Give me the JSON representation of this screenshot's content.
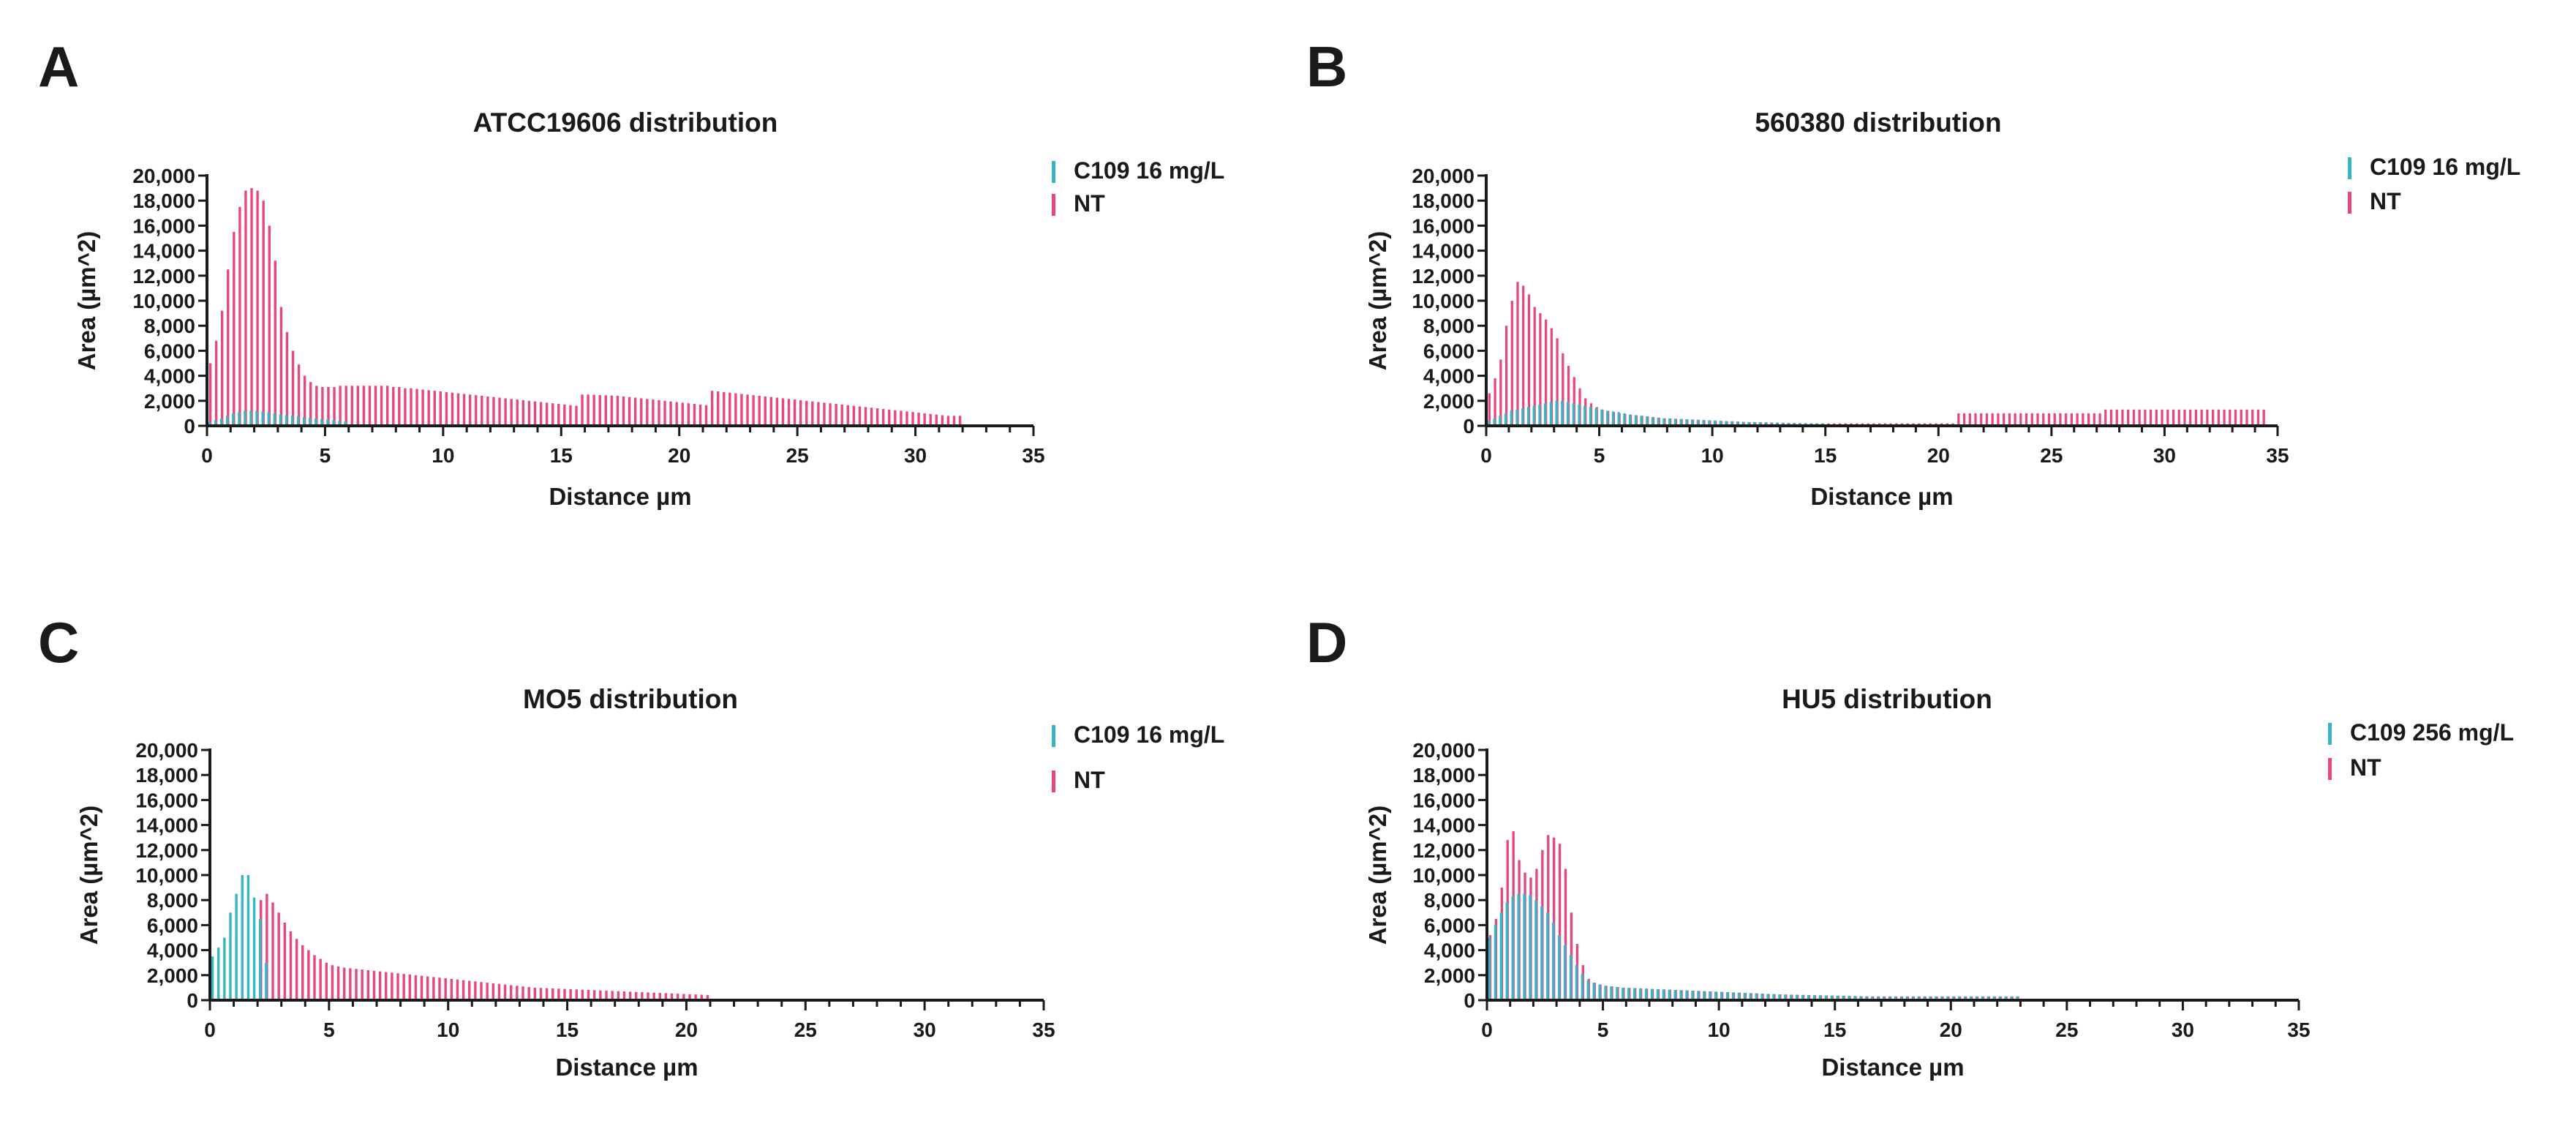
{
  "colors": {
    "treated": "#36b5c2",
    "nt": "#e7477e"
  },
  "chart_data": [
    {
      "panel": "A",
      "type": "bar",
      "title": "ATCC19606 distribution",
      "xlabel": "Distance µm",
      "ylabel": "Area (µm^2)",
      "xlim": [
        0,
        35
      ],
      "ylim": [
        0,
        20000
      ],
      "x_ticks": [
        "0",
        "5",
        "10",
        "15",
        "20",
        "25",
        "30",
        "35"
      ],
      "y_ticks": [
        "0",
        "2,000",
        "4,000",
        "6,000",
        "8,000",
        "10,000",
        "12,000",
        "14,000",
        "16,000",
        "18,000",
        "20,000"
      ],
      "bin_width": 0.25,
      "series": [
        {
          "name": "C109 16 mg/L",
          "color": "#36b5c2",
          "x_start": 0,
          "x_end": 6.0,
          "values": [
            300,
            450,
            600,
            800,
            1000,
            1100,
            1200,
            1200,
            1200,
            1150,
            1100,
            1000,
            900,
            850,
            800,
            750,
            700,
            650,
            600,
            550,
            500,
            450,
            400,
            350
          ]
        },
        {
          "name": "NT",
          "color": "#e7477e",
          "x_start": 0,
          "x_end": 30.5,
          "values": [
            5000,
            6800,
            9200,
            12500,
            15500,
            17500,
            18800,
            19000,
            18800,
            18000,
            16000,
            13200,
            9500,
            7500,
            6000,
            4900,
            4000,
            3500,
            3200,
            3100,
            3100,
            3100,
            3200,
            3200,
            3200,
            3200,
            3200,
            3200,
            3200,
            3200,
            3200,
            3100,
            3100,
            3000,
            3000,
            2950,
            2900,
            2850,
            2800,
            2750,
            2700,
            2650,
            2600,
            2550,
            2500,
            2450,
            2400,
            2350,
            2300,
            2250,
            2200,
            2150,
            2100,
            2050,
            2000,
            1950,
            1900,
            1850,
            1800,
            1750,
            1700,
            1650,
            1600,
            2500,
            2500,
            2480,
            2460,
            2440,
            2420,
            2400,
            2350,
            2300,
            2250,
            2200,
            2150,
            2100,
            2050,
            2000,
            1950,
            1900,
            1850,
            1800,
            1750,
            1700,
            1650,
            2800,
            2750,
            2700,
            2650,
            2600,
            2550,
            2500,
            2450,
            2400,
            2350,
            2300,
            2250,
            2200,
            2150,
            2100,
            2050,
            2000,
            1950,
            1900,
            1850,
            1800,
            1750,
            1700,
            1650,
            1600,
            1550,
            1500,
            1450,
            1400,
            1350,
            1300,
            1250,
            1200,
            1150,
            1100,
            1050,
            1000,
            950,
            900,
            850,
            800,
            800,
            800
          ]
        }
      ]
    },
    {
      "panel": "B",
      "type": "bar",
      "title": "560380 distribution",
      "xlabel": "Distance µm",
      "ylabel": "Area (µm^2)",
      "xlim": [
        0,
        35
      ],
      "ylim": [
        0,
        20000
      ],
      "x_ticks": [
        "0",
        "5",
        "10",
        "15",
        "20",
        "25",
        "30",
        "35"
      ],
      "y_ticks": [
        "0",
        "2,000",
        "4,000",
        "6,000",
        "8,000",
        "10,000",
        "12,000",
        "14,000",
        "16,000",
        "18,000",
        "20,000"
      ],
      "bin_width": 0.25,
      "series": [
        {
          "name": "C109 16 mg/L",
          "color": "#36b5c2",
          "x_start": 0,
          "x_end": 15.0,
          "values": [
            400,
            600,
            800,
            1000,
            1200,
            1300,
            1400,
            1500,
            1600,
            1700,
            1800,
            1900,
            2000,
            2000,
            1900,
            1800,
            1700,
            1600,
            1500,
            1400,
            1300,
            1200,
            1150,
            1100,
            1000,
            900,
            850,
            800,
            750,
            700,
            650,
            600,
            580,
            560,
            540,
            520,
            500,
            480,
            460,
            440,
            420,
            400,
            380,
            360,
            340,
            320,
            300,
            300,
            290,
            280,
            270,
            260,
            250,
            240,
            230,
            220,
            210,
            200,
            200,
            200
          ]
        },
        {
          "name": "NT",
          "color": "#e7477e",
          "x_start": 0,
          "x_end": 35.0,
          "values": [
            2600,
            3800,
            5300,
            8000,
            10000,
            11500,
            11200,
            10500,
            9500,
            9000,
            8500,
            7800,
            7000,
            5800,
            4800,
            3900,
            3000,
            2200,
            1800,
            1500,
            1300,
            1200,
            1100,
            1000,
            950,
            900,
            850,
            800,
            750,
            700,
            650,
            600,
            580,
            560,
            540,
            520,
            500,
            480,
            460,
            440,
            420,
            400,
            380,
            360,
            340,
            320,
            300,
            290,
            280,
            270,
            260,
            250,
            240,
            230,
            220,
            210,
            200,
            200,
            200,
            200,
            200,
            200,
            200,
            200,
            200,
            200,
            200,
            200,
            200,
            200,
            200,
            200,
            200,
            200,
            200,
            200,
            200,
            200,
            200,
            200,
            200,
            200,
            200,
            1000,
            1000,
            1000,
            1000,
            1000,
            1000,
            1000,
            1000,
            1000,
            1000,
            1000,
            1000,
            1000,
            1000,
            1000,
            1000,
            1000,
            1000,
            1000,
            1000,
            1000,
            1000,
            1000,
            1000,
            1000,
            1000,
            1300,
            1300,
            1300,
            1300,
            1300,
            1300,
            1300,
            1300,
            1300,
            1300,
            1300,
            1300,
            1300,
            1300,
            1300,
            1300,
            1300,
            1300,
            1300,
            1300,
            1300,
            1300,
            1300,
            1300,
            1300,
            1300,
            1300,
            1300,
            1300
          ]
        }
      ]
    },
    {
      "panel": "C",
      "type": "bar",
      "title": "MO5 distribution",
      "xlabel": "Distance µm",
      "ylabel": "Area (µm^2)",
      "xlim": [
        0,
        35
      ],
      "ylim": [
        0,
        20000
      ],
      "x_ticks": [
        "0",
        "5",
        "10",
        "15",
        "20",
        "25",
        "30",
        "35"
      ],
      "y_ticks": [
        "0",
        "2,000",
        "4,000",
        "6,000",
        "8,000",
        "10,000",
        "12,000",
        "14,000",
        "16,000",
        "18,000",
        "20,000"
      ],
      "bin_width": 0.25,
      "series": [
        {
          "name": "C109 16 mg/L",
          "color": "#36b5c2",
          "x_start": 0,
          "x_end": 2.5,
          "values": [
            3500,
            4200,
            5000,
            7000,
            8500,
            10000,
            10000,
            8200,
            6500,
            3000
          ]
        },
        {
          "name": "NT",
          "color": "#e7477e",
          "x_start": 0,
          "x_end": 21.0,
          "values": [
            0,
            0,
            0,
            0,
            0,
            0,
            0,
            0,
            8000,
            8500,
            7800,
            7000,
            6200,
            5500,
            4900,
            4400,
            4000,
            3600,
            3300,
            3000,
            2800,
            2700,
            2600,
            2550,
            2500,
            2450,
            2400,
            2350,
            2300,
            2250,
            2200,
            2150,
            2100,
            2050,
            2000,
            1950,
            1900,
            1850,
            1800,
            1750,
            1700,
            1650,
            1600,
            1550,
            1500,
            1450,
            1400,
            1350,
            1300,
            1250,
            1200,
            1150,
            1100,
            1050,
            1000,
            980,
            960,
            940,
            920,
            900,
            880,
            860,
            840,
            820,
            800,
            780,
            760,
            740,
            720,
            700,
            680,
            660,
            640,
            620,
            600,
            580,
            560,
            540,
            520,
            500,
            480,
            460,
            440,
            420
          ]
        }
      ]
    },
    {
      "panel": "D",
      "type": "bar",
      "title": "HU5 distribution",
      "xlabel": "Distance µm",
      "ylabel": "Area (µm^2)",
      "xlim": [
        0,
        35
      ],
      "ylim": [
        0,
        20000
      ],
      "x_ticks": [
        "0",
        "5",
        "10",
        "15",
        "20",
        "25",
        "30",
        "35"
      ],
      "y_ticks": [
        "0",
        "2,000",
        "4,000",
        "6,000",
        "8,000",
        "10,000",
        "12,000",
        "14,000",
        "16,000",
        "18,000",
        "20,000"
      ],
      "bin_width": 0.25,
      "series": [
        {
          "name": "C109 256 mg/L",
          "color": "#36b5c2",
          "x_start": 0,
          "x_end": 23.0,
          "values": [
            5000,
            6000,
            7000,
            7800,
            8300,
            8500,
            8500,
            8400,
            8000,
            7500,
            7000,
            6200,
            5200,
            4400,
            3600,
            2800,
            2100,
            1600,
            1400,
            1250,
            1150,
            1100,
            1050,
            1000,
            980,
            960,
            940,
            920,
            900,
            880,
            860,
            840,
            820,
            800,
            780,
            760,
            740,
            720,
            700,
            680,
            660,
            640,
            620,
            600,
            580,
            560,
            540,
            520,
            500,
            480,
            460,
            450,
            440,
            430,
            420,
            410,
            400,
            390,
            380,
            370,
            360,
            350,
            340,
            330,
            320,
            310,
            300,
            300,
            300,
            300,
            300,
            300,
            300,
            300,
            300,
            300,
            300,
            300,
            300,
            300,
            300,
            300,
            300,
            300,
            300,
            300,
            300,
            300,
            300,
            300,
            300,
            300
          ]
        },
        {
          "name": "NT",
          "color": "#e7477e",
          "x_start": 0,
          "x_end": 23.0,
          "values": [
            5200,
            6500,
            9000,
            12800,
            13500,
            11200,
            10200,
            9800,
            10500,
            12000,
            13200,
            13000,
            12500,
            10500,
            7000,
            4500,
            2800,
            1700,
            1400,
            1250,
            1150,
            1100,
            1050,
            1000,
            980,
            960,
            940,
            920,
            900,
            880,
            860,
            840,
            820,
            800,
            780,
            760,
            740,
            720,
            700,
            680,
            660,
            640,
            620,
            600,
            580,
            560,
            540,
            520,
            500,
            480,
            460,
            450,
            440,
            430,
            420,
            410,
            400,
            390,
            380,
            370,
            360,
            350,
            340,
            330,
            320,
            310,
            300,
            300,
            300,
            300,
            300,
            300,
            300,
            300,
            300,
            300,
            300,
            300,
            300,
            300,
            300,
            300,
            300,
            300,
            300,
            300,
            300,
            300,
            300,
            300,
            300,
            300
          ]
        }
      ]
    }
  ]
}
